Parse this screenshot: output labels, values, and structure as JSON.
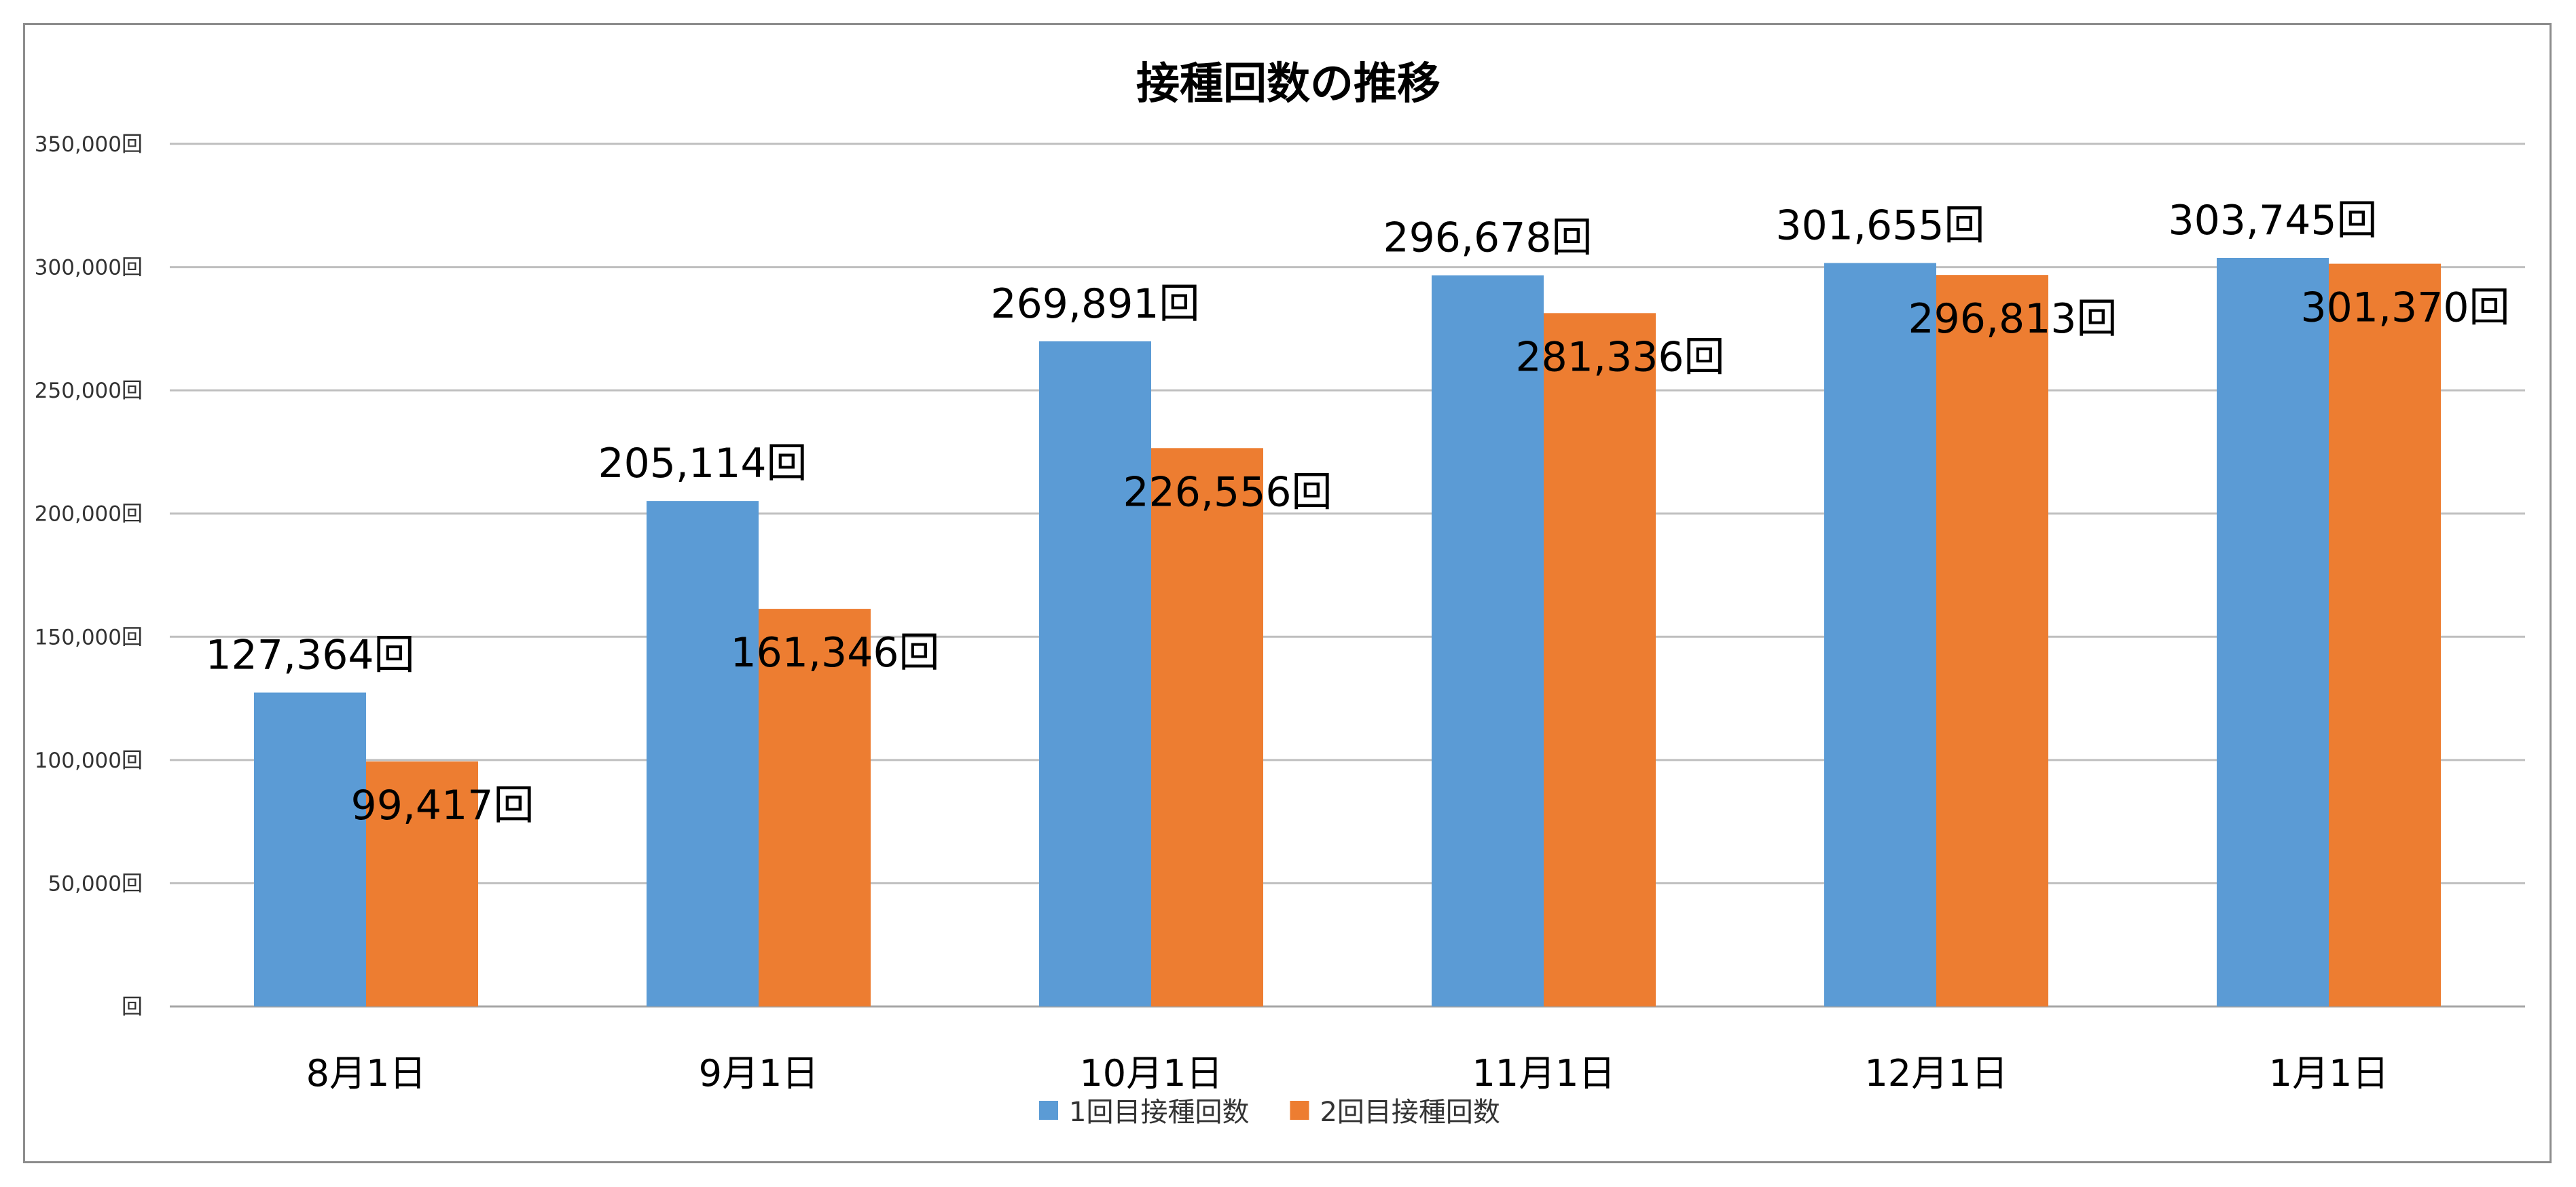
{
  "chart_data": {
    "type": "bar",
    "title": "接種回数の推移",
    "categories": [
      "8月1日",
      "9月1日",
      "10月1日",
      "11月1日",
      "12月1日",
      "1月1日"
    ],
    "series": [
      {
        "name": "1回目接種回数",
        "color": "#5B9BD5",
        "values": [
          127364,
          205114,
          269891,
          296678,
          301655,
          303745
        ],
        "labels": [
          "127,364回",
          "205,114回",
          "269,891回",
          "296,678回",
          "301,655回",
          "303,745回"
        ]
      },
      {
        "name": "2回目接種回数",
        "color": "#ED7D31",
        "values": [
          99417,
          161346,
          226556,
          281336,
          296813,
          301370
        ],
        "labels": [
          "99,417回",
          "161,346回",
          "226,556回",
          "281,336回",
          "296,813回",
          "301,370回"
        ]
      }
    ],
    "ylim": [
      0,
      350000
    ],
    "yticks": [
      0,
      50000,
      100000,
      150000,
      200000,
      250000,
      300000,
      350000
    ],
    "ytick_labels": [
      "回",
      "50,000回",
      "100,000回",
      "150,000回",
      "200,000回",
      "250,000回",
      "300,000回",
      "350,000回"
    ],
    "grid": true,
    "legend_position": "bottom"
  }
}
